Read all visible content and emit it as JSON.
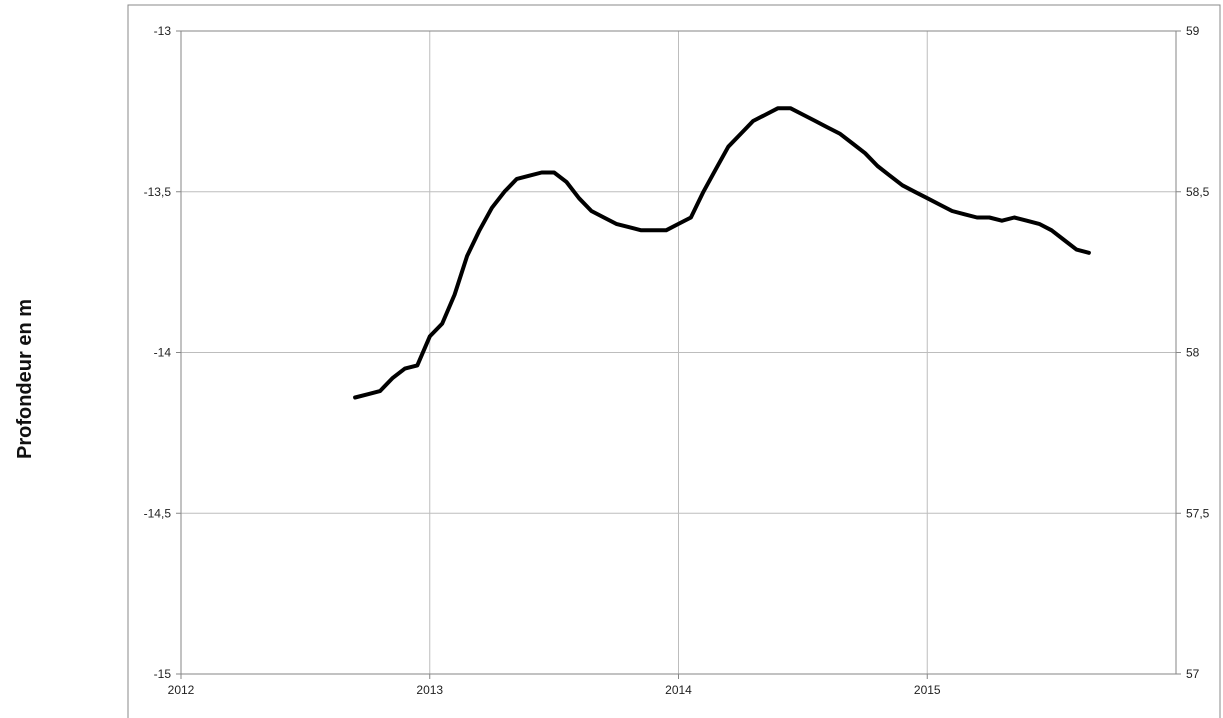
{
  "chart_data": {
    "type": "line",
    "title": "",
    "xlabel": "",
    "ylabel": "Profondeur en m",
    "y2label": "",
    "xlim": [
      2012,
      2016
    ],
    "ylim": [
      -15,
      -13
    ],
    "y2lim": [
      57,
      59
    ],
    "grid": true,
    "x_ticks": [
      "2012",
      "2013",
      "2014",
      "2015"
    ],
    "y_ticks": [
      "-13",
      "-13,5",
      "-14",
      "-14,5",
      "-15"
    ],
    "y2_ticks": [
      "59",
      "58,5",
      "58",
      "57,5",
      "57"
    ],
    "series": [
      {
        "color": "#000000",
        "x": [
          2012.7,
          2012.75,
          2012.8,
          2012.85,
          2012.9,
          2012.95,
          2013.0,
          2013.05,
          2013.1,
          2013.15,
          2013.2,
          2013.25,
          2013.3,
          2013.35,
          2013.4,
          2013.45,
          2013.5,
          2013.55,
          2013.6,
          2013.65,
          2013.7,
          2013.75,
          2013.8,
          2013.85,
          2013.9,
          2013.95,
          2014.0,
          2014.05,
          2014.1,
          2014.15,
          2014.2,
          2014.25,
          2014.3,
          2014.35,
          2014.4,
          2014.45,
          2014.5,
          2014.55,
          2014.6,
          2014.65,
          2014.7,
          2014.75,
          2014.8,
          2014.85,
          2014.9,
          2014.95,
          2015.0,
          2015.05,
          2015.1,
          2015.15,
          2015.2,
          2015.25,
          2015.3,
          2015.35,
          2015.4,
          2015.45,
          2015.5,
          2015.55,
          2015.6,
          2015.65
        ],
        "y": [
          -14.14,
          -14.13,
          -14.12,
          -14.08,
          -14.05,
          -14.04,
          -13.95,
          -13.91,
          -13.82,
          -13.7,
          -13.62,
          -13.55,
          -13.5,
          -13.46,
          -13.45,
          -13.44,
          -13.44,
          -13.47,
          -13.52,
          -13.56,
          -13.58,
          -13.6,
          -13.61,
          -13.62,
          -13.62,
          -13.62,
          -13.6,
          -13.58,
          -13.5,
          -13.43,
          -13.36,
          -13.32,
          -13.28,
          -13.26,
          -13.24,
          -13.24,
          -13.26,
          -13.28,
          -13.3,
          -13.32,
          -13.35,
          -13.38,
          -13.42,
          -13.45,
          -13.48,
          -13.5,
          -13.52,
          -13.54,
          -13.56,
          -13.57,
          -13.58,
          -13.58,
          -13.59,
          -13.58,
          -13.59,
          -13.6,
          -13.62,
          -13.65,
          -13.68,
          -13.69
        ]
      }
    ]
  }
}
